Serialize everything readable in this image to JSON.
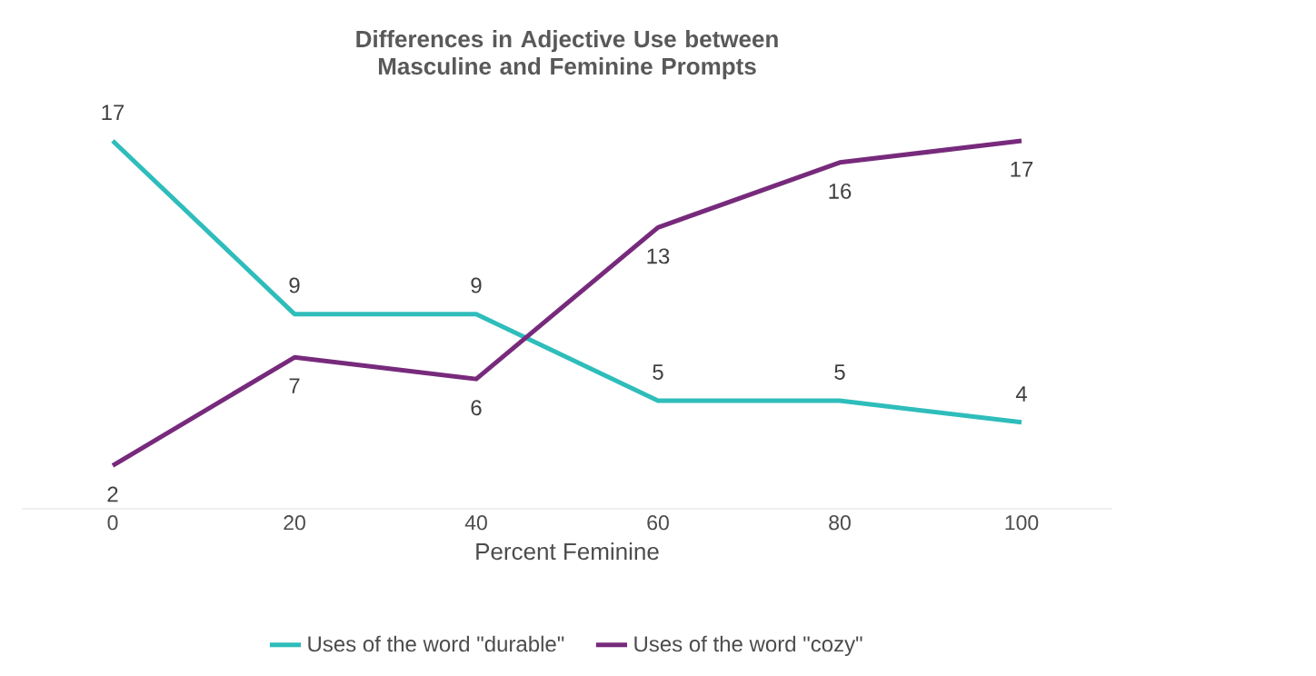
{
  "chart_data": {
    "type": "line",
    "title": "Differences in Adjective Use between Masculine and Feminine Prompts",
    "xlabel": "Percent Feminine",
    "categories": [
      "0",
      "20",
      "40",
      "60",
      "80",
      "100"
    ],
    "series": [
      {
        "name": "Uses of the word \"durable\"",
        "color": "#2ebdbb",
        "values": [
          17,
          9,
          9,
          5,
          5,
          4
        ]
      },
      {
        "name": "Uses of the word \"cozy\"",
        "color": "#772a7c",
        "values": [
          2,
          7,
          6,
          13,
          16,
          17
        ]
      }
    ],
    "data_labels": true,
    "legend": "bottom",
    "grid": false,
    "marker": "none",
    "line_style": "solid",
    "tick_labels": "x"
  }
}
